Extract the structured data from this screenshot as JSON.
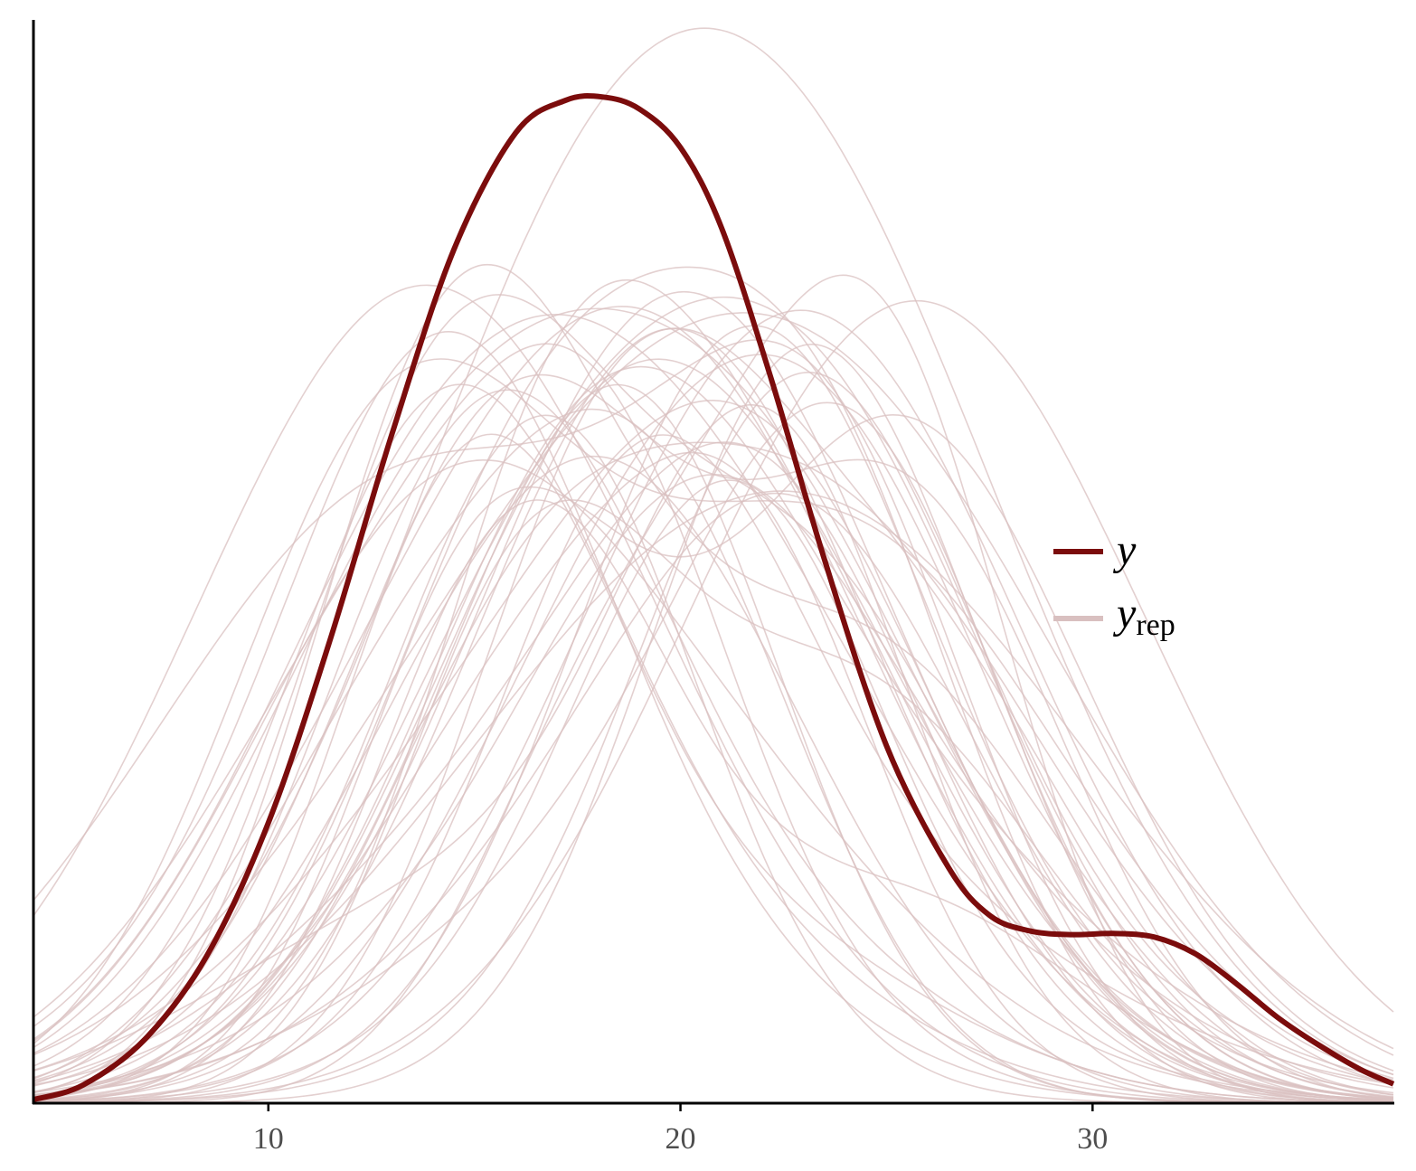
{
  "chart_data": {
    "type": "line",
    "title": "",
    "xlabel": "",
    "ylabel": "",
    "xlim": [
      4.3,
      37.3
    ],
    "ylim": [
      0,
      0.09
    ],
    "x_ticks": [
      10,
      20,
      30
    ],
    "x_tick_labels": [
      "10",
      "20",
      "30"
    ],
    "y_axis_ticks_shown": false,
    "grid": false,
    "legend_position": "right",
    "colors": {
      "y": "#7b0c0c",
      "yrep": "#d9c0c0"
    },
    "series": [
      {
        "name": "y",
        "legend_label": "y",
        "x": [
          4.3,
          5.5,
          7,
          8.5,
          10,
          11.5,
          13,
          14.5,
          16,
          17.2,
          18.1,
          19,
          20,
          21,
          22.2,
          23.5,
          25,
          26.5,
          27.5,
          28.5,
          29.5,
          30.5,
          31.5,
          32.5,
          33.5,
          34.5,
          35.5,
          36.5,
          37.3
        ],
        "y": [
          0.0003,
          0.0015,
          0.0053,
          0.0122,
          0.0233,
          0.0385,
          0.0556,
          0.0709,
          0.0806,
          0.0833,
          0.0836,
          0.0826,
          0.0794,
          0.0727,
          0.0602,
          0.0451,
          0.0297,
          0.0196,
          0.0156,
          0.0143,
          0.014,
          0.0141,
          0.0138,
          0.0124,
          0.0099,
          0.0071,
          0.0048,
          0.0028,
          0.0016
        ]
      }
    ],
    "replicates": {
      "name": "yrep",
      "legend_label": "y",
      "legend_subscript": "rep",
      "count": 50,
      "x_range": [
        4.3,
        37.3
      ],
      "typical_peak_range": [
        0.05,
        0.07
      ],
      "max_peak": 0.0893
    }
  }
}
